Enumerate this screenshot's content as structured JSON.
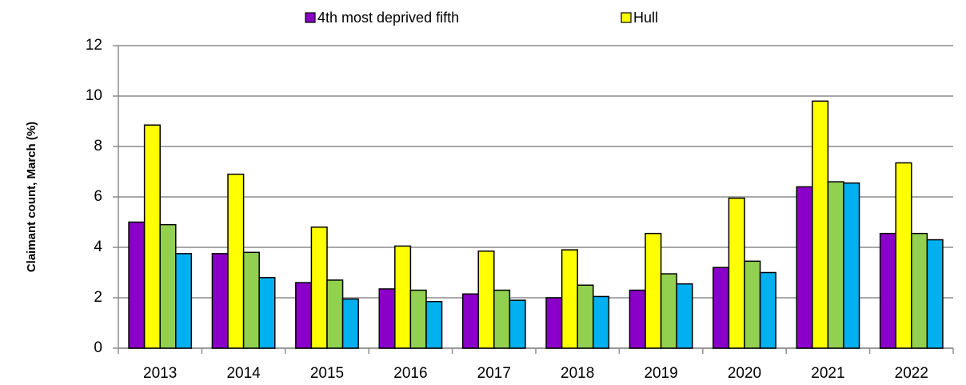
{
  "chart_data": {
    "type": "bar",
    "y_label": "Claimant count, March (%)",
    "categories": [
      "2013",
      "2014",
      "2015",
      "2016",
      "2017",
      "2018",
      "2019",
      "2020",
      "2021",
      "2022"
    ],
    "series": [
      {
        "name": "4th most deprived fifth",
        "color": "#8b00c8",
        "values": [
          5.0,
          3.75,
          2.6,
          2.35,
          2.15,
          2.0,
          2.3,
          3.2,
          6.4,
          4.55
        ]
      },
      {
        "name": "Hull",
        "color": "#ffff00",
        "values": [
          8.85,
          6.9,
          4.8,
          4.05,
          3.85,
          3.9,
          4.55,
          5.95,
          9.8,
          7.35
        ]
      },
      {
        "color": "#92d050",
        "values": [
          4.9,
          3.8,
          2.7,
          2.3,
          2.3,
          2.5,
          2.95,
          3.45,
          6.6,
          4.55
        ]
      },
      {
        "color": "#00b0f0",
        "values": [
          3.75,
          2.8,
          1.95,
          1.85,
          1.9,
          2.05,
          2.55,
          3.0,
          6.55,
          4.3
        ]
      }
    ],
    "ylim": [
      0,
      12
    ],
    "yticks": [
      0,
      2,
      4,
      6,
      8,
      10,
      12
    ],
    "grid": true
  }
}
